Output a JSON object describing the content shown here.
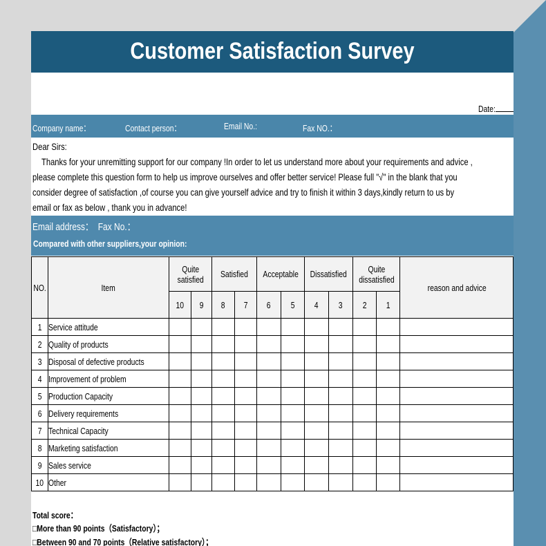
{
  "header": {
    "title": "Customer Satisfaction Survey",
    "date": "Date:"
  },
  "info": [
    "Company name：",
    "Contact person：",
    "Email No.:",
    "Fax NO.："
  ],
  "letter": {
    "greeting": "Dear Sirs:",
    "lines": [
      "Thanks for your unremitting support for our company !In order to let us understand more about your requirements and advice ,",
      "please complete this question form to help us improve ourselves and offer better service! Please full  \"√\" in the blank that you",
      "consider degree of satisfaction ,of course you can give yourself advice and try to finish it within 3 days,kindly return to us by",
      "email or fax as below , thank you in advance!"
    ]
  },
  "contact": "Email address：  Fax No.：",
  "prompt": "Compared with other suppliers,your opinion:",
  "table": {
    "headers": {
      "no": "NO.",
      "item": "Item",
      "groups": [
        "Quite satisfied",
        "Satisfied",
        "Acceptable",
        "Dissatisfied",
        "Quite dissatisfied"
      ],
      "scores": [
        "10",
        "9",
        "8",
        "7",
        "6",
        "5",
        "4",
        "3",
        "2",
        "1"
      ],
      "reason": "reason and advice"
    },
    "rows": [
      [
        "1",
        "Service attitude"
      ],
      [
        "2",
        "Quality of products"
      ],
      [
        "3",
        "Disposal of defective products"
      ],
      [
        "4",
        "Improvement of problem"
      ],
      [
        "5",
        "Production Capacity"
      ],
      [
        "6",
        "Delivery requirements"
      ],
      [
        "7",
        "Technical Capacity"
      ],
      [
        "8",
        "Marketing satisfaction"
      ],
      [
        "9",
        "Sales service"
      ],
      [
        "10",
        "Other"
      ]
    ]
  },
  "footer": [
    "Total score：",
    "□More than 90 points（Satisfactory）；",
    "□Between 90 and 70 points（Relative satisfactory）；"
  ]
}
